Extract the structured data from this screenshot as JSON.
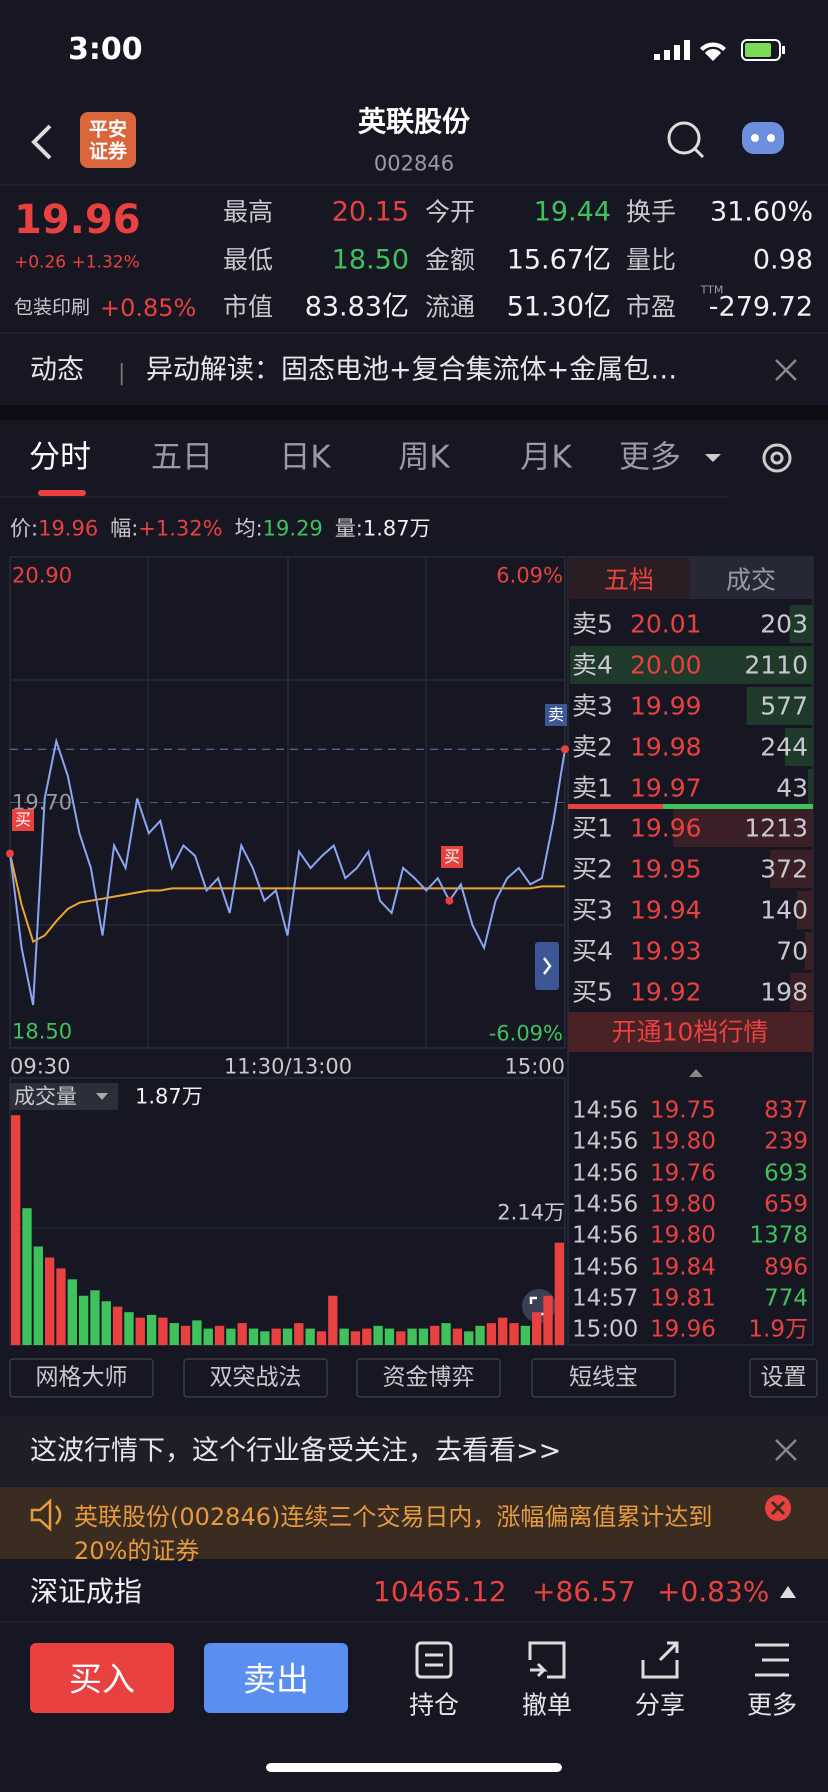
{
  "status": {
    "time": "3:00"
  },
  "header": {
    "logo": [
      "平安",
      "证券"
    ],
    "title": "英联股份",
    "code": "002846"
  },
  "quote": {
    "price": "19.96",
    "change": "+0.26 +1.32%",
    "sector": "包装印刷",
    "sector_change": "+0.85%",
    "ttm": "TTM",
    "fields": [
      {
        "label": "最高",
        "value": "20.15",
        "color": "#e8413f"
      },
      {
        "label": "今开",
        "value": "19.44",
        "color": "#3fc15c"
      },
      {
        "label": "换手",
        "value": "31.60%",
        "color": "#f0f0f4"
      },
      {
        "label": "最低",
        "value": "18.50",
        "color": "#3fc15c"
      },
      {
        "label": "金额",
        "value": "15.67亿",
        "color": "#f0f0f4"
      },
      {
        "label": "量比",
        "value": "0.98",
        "color": "#f0f0f4"
      },
      {
        "label": "市值",
        "value": "83.83亿",
        "color": "#f0f0f4"
      },
      {
        "label": "流通",
        "value": "51.30亿",
        "color": "#f0f0f4"
      },
      {
        "label": "市盈",
        "value": "-279.72",
        "color": "#f0f0f4"
      }
    ]
  },
  "news": {
    "tag": "动态",
    "text": "异动解读：固态电池+复合集流体+金属包…"
  },
  "tabs": [
    "分时",
    "五日",
    "日K",
    "周K",
    "月K",
    "更多"
  ],
  "info": [
    {
      "label": "价:",
      "value": "19.96",
      "color": "#e8413f"
    },
    {
      "label": "幅:",
      "value": "+1.32%",
      "color": "#e8413f"
    },
    {
      "label": "均:",
      "value": "19.29",
      "color": "#3fc15c"
    },
    {
      "label": "量:",
      "value": "1.87万",
      "color": "#f0f0f4"
    }
  ],
  "chart": {
    "ylim": [
      18.5,
      20.9
    ],
    "yticks": [
      {
        "value": 20.9,
        "label": "20.90"
      },
      {
        "value": 19.7,
        "label": "19.70"
      },
      {
        "value": 18.5,
        "label": "18.50"
      }
    ],
    "pct_labels": [
      "6.09%",
      "-6.09%"
    ],
    "time_labels": [
      "09:30",
      "11:30/13:00",
      "15:00"
    ],
    "price": [
      19.45,
      18.99,
      18.71,
      19.72,
      20.0,
      19.83,
      19.55,
      19.38,
      19.05,
      19.49,
      19.38,
      19.72,
      19.55,
      19.61,
      19.38,
      19.49,
      19.44,
      19.27,
      19.33,
      19.16,
      19.49,
      19.38,
      19.22,
      19.27,
      19.05,
      19.46,
      19.38,
      19.44,
      19.49,
      19.33,
      19.38,
      19.46,
      19.22,
      19.16,
      19.38,
      19.33,
      19.27,
      19.33,
      19.22,
      19.3,
      19.1,
      18.99,
      19.22,
      19.33,
      19.38,
      19.3,
      19.33,
      19.61,
      19.96
    ],
    "avg": [
      19.45,
      19.2,
      19.02,
      19.05,
      19.12,
      19.18,
      19.21,
      19.22,
      19.23,
      19.24,
      19.25,
      19.26,
      19.27,
      19.27,
      19.28,
      19.28,
      19.28,
      19.28,
      19.28,
      19.28,
      19.28,
      19.28,
      19.28,
      19.28,
      19.28,
      19.28,
      19.28,
      19.28,
      19.28,
      19.28,
      19.28,
      19.28,
      19.28,
      19.28,
      19.28,
      19.28,
      19.28,
      19.28,
      19.28,
      19.28,
      19.28,
      19.28,
      19.28,
      19.28,
      19.28,
      19.28,
      19.29,
      19.29,
      19.29
    ],
    "marks": [
      "买",
      "买",
      "卖"
    ]
  },
  "volume": {
    "label": "成交量",
    "value": "1.87万",
    "ylim": [
      0,
      4.24
    ],
    "ticks": [
      {
        "value": 2.14,
        "label": "2.14万"
      }
    ],
    "values": [
      4.2,
      2.5,
      1.8,
      1.6,
      1.4,
      1.2,
      0.9,
      1.0,
      0.8,
      0.7,
      0.6,
      0.5,
      0.55,
      0.5,
      0.4,
      0.35,
      0.45,
      0.3,
      0.35,
      0.3,
      0.4,
      0.3,
      0.25,
      0.3,
      0.3,
      0.4,
      0.3,
      0.25,
      0.9,
      0.3,
      0.25,
      0.3,
      0.35,
      0.3,
      0.25,
      0.3,
      0.3,
      0.35,
      0.4,
      0.3,
      0.25,
      0.35,
      0.4,
      0.5,
      0.4,
      0.35,
      0.6,
      0.9,
      1.87
    ]
  },
  "book": {
    "tabs": [
      "五档",
      "成交"
    ],
    "sell": [
      {
        "label": "卖5",
        "price": "20.01",
        "volume": 203
      },
      {
        "label": "卖4",
        "price": "20.00",
        "volume": 2110
      },
      {
        "label": "卖3",
        "price": "19.99",
        "volume": 577
      },
      {
        "label": "卖2",
        "price": "19.98",
        "volume": 244
      },
      {
        "label": "卖1",
        "price": "19.97",
        "volume": 43
      }
    ],
    "buy": [
      {
        "label": "买1",
        "price": "19.96",
        "volume": 1213
      },
      {
        "label": "买2",
        "price": "19.95",
        "volume": 372
      },
      {
        "label": "买3",
        "price": "19.94",
        "volume": 140
      },
      {
        "label": "买4",
        "price": "19.93",
        "volume": 70
      },
      {
        "label": "买5",
        "price": "19.92",
        "volume": 198
      }
    ],
    "upgrade": "开通10档行情",
    "trades": [
      {
        "time": "14:56",
        "price": "19.75",
        "volume": "837",
        "color": "#e8413f"
      },
      {
        "time": "14:56",
        "price": "19.80",
        "volume": "239",
        "color": "#e8413f"
      },
      {
        "time": "14:56",
        "price": "19.76",
        "volume": "693",
        "color": "#3fc15c"
      },
      {
        "time": "14:56",
        "price": "19.80",
        "volume": "659",
        "color": "#e8413f"
      },
      {
        "time": "14:56",
        "price": "19.80",
        "volume": "1378",
        "color": "#3fc15c"
      },
      {
        "time": "14:56",
        "price": "19.84",
        "volume": "896",
        "color": "#e8413f"
      },
      {
        "time": "14:57",
        "price": "19.81",
        "volume": "774",
        "color": "#3fc15c"
      },
      {
        "time": "15:00",
        "price": "19.96",
        "volume": "1.9万",
        "color": "#e8413f"
      }
    ]
  },
  "tools": [
    "网格大师",
    "双突战法",
    "资金博弈",
    "短线宝",
    "设置"
  ],
  "banner": "这波行情下，这个行业备受关注，去看看>>",
  "notice": "英联股份(002846)连续三个交易日内，涨幅偏离值累计达到20%的证券",
  "index": {
    "name": "深证成指",
    "value": "10465.12",
    "change": "+86.57",
    "pct": "+0.83%"
  },
  "actions": {
    "buy": "买入",
    "sell": "卖出",
    "items": [
      "持仓",
      "撤单",
      "分享",
      "更多"
    ]
  }
}
